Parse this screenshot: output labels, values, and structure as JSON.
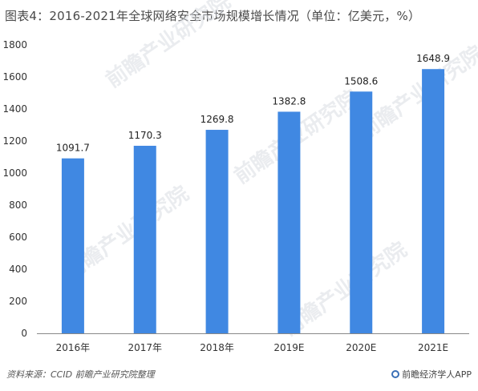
{
  "chart_data": {
    "type": "bar",
    "title": "图表4：2016-2021年全球网络安全市场规模增长情况（单位：亿美元，%）",
    "categories": [
      "2016年",
      "2017年",
      "2018年",
      "2019E",
      "2020E",
      "2021E"
    ],
    "values": [
      1091.7,
      1170.3,
      1269.8,
      1382.8,
      1508.6,
      1648.9
    ],
    "value_labels": [
      "1091.7",
      "1170.3",
      "1269.8",
      "1382.8",
      "1508.6",
      "1648.9"
    ],
    "xlabel": "",
    "ylabel": "",
    "ylim": [
      0,
      1800
    ],
    "yticks": [
      0,
      200,
      400,
      600,
      800,
      1000,
      1200,
      1400,
      1600,
      1800
    ],
    "grid": false,
    "legend": "none",
    "bar_color": "#4088e2"
  },
  "footer": {
    "source": "资料来源：CCID  前瞻产业研究院整理",
    "brand": "前瞻经济学人APP"
  },
  "watermark": {
    "text": "前瞻产业研究院"
  },
  "colors": {
    "bar": "#4088e2",
    "axis": "#888888",
    "brand_icon": "#3a6fb6"
  }
}
